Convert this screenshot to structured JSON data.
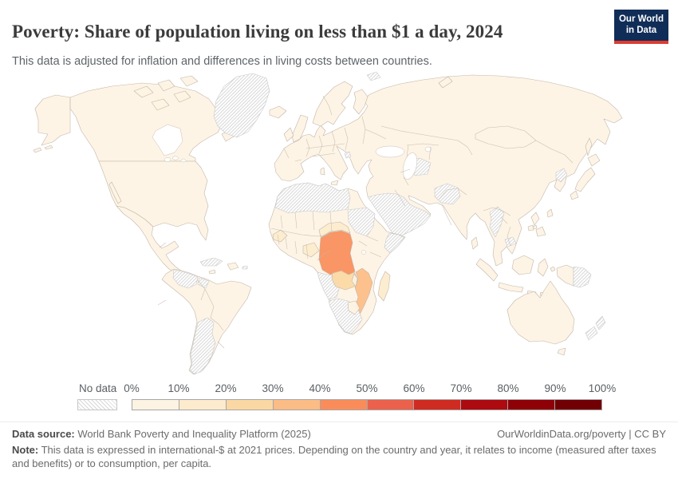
{
  "header": {
    "title": "Poverty: Share of population living on less than $1 a day, 2024",
    "subtitle": "This data is adjusted for inflation and differences in living costs between countries.",
    "logo": {
      "line1": "Our World",
      "line2": "in Data",
      "bg_color": "#102d58",
      "accent_color": "#dc3c30"
    }
  },
  "legend": {
    "no_data_label": "No data",
    "ticks": [
      "0%",
      "10%",
      "20%",
      "30%",
      "40%",
      "50%",
      "60%",
      "70%",
      "80%",
      "90%",
      "100%"
    ],
    "bin_colors": [
      "#fdf3e3",
      "#fcebcd",
      "#fbd8a3",
      "#fcbc85",
      "#fa8c5a",
      "#ec614b",
      "#cf2b21",
      "#ad0b10",
      "#8d0107",
      "#710004"
    ],
    "hatch_color": "#d6d6d6"
  },
  "map": {
    "water_color": "#ffffff",
    "border_color": "#c2b6aa",
    "nodata_border_color": "#c9c9c9",
    "regions": {
      "alaska": 0,
      "aleutians-1": 0,
      "aleutians-2": 0,
      "canada": 0,
      "arctic-island-1": 0,
      "arctic-island-2": 0,
      "arctic-island-3": 0,
      "arctic-island-4": 0,
      "arctic-island-5": 0,
      "newfoundland": 0,
      "greenland": "nodata",
      "iceland": 0,
      "usa": 0,
      "baja": 0,
      "mexico": 0,
      "cuba": "nodata",
      "jamaica": 0,
      "hispaniola": 0,
      "puerto-rico": "nodata",
      "south-america": 0,
      "venezuela": "nodata",
      "guyanas": "nodata",
      "argentina": "nodata",
      "eurasia": 0,
      "scandinavia": 0,
      "finland": 0,
      "uk": 0,
      "ireland": 0,
      "sicily": 0,
      "sardinia": 0,
      "balkans": "nodata",
      "svalbard": "nodata",
      "novaya-zemlya": 0,
      "africa": 0,
      "maghreb": "nodata",
      "sudan": "nodata",
      "somalia": "nodata",
      "angola": "nodata",
      "southern-africa": "nodata",
      "zimbabwe": 0,
      "drc": 4,
      "car": 1,
      "nigeria": 1,
      "guinea": 1,
      "zambia": 2,
      "mozambique": 3,
      "malawi": 0,
      "madagascar": 1,
      "arabia": "nodata",
      "turkmenistan": "nodata",
      "afghanistan": "nodata",
      "myanmar": "nodata",
      "cambodia": "nodata",
      "north-korea": "nodata",
      "sakhalin": 0,
      "japan-hokkaido": 0,
      "japan-honshu": 0,
      "japan-kyushu": 0,
      "taiwan": 0,
      "hainan": 0,
      "sri-lanka": 0,
      "luzon": 0,
      "visayas": 0,
      "mindanao": 0,
      "sumatra": 0,
      "java": 0,
      "borneo": 0,
      "sulawesi": 0,
      "sunda-1": 0,
      "sunda-2": 0,
      "maluku": 0,
      "new-guinea-west": 0,
      "papua-new-guinea": "nodata",
      "australia": 0,
      "tasmania": 0,
      "nz-north": "nodata",
      "nz-south": "nodata"
    }
  },
  "footer": {
    "source_label": "Data source:",
    "source_text": "World Bank Poverty and Inequality Platform (2025)",
    "link_text": "OurWorldinData.org/poverty | CC BY",
    "note_label": "Note:",
    "note_text": "This data is expressed in international-$ at 2021 prices. Depending on the country and year, it relates to income (measured after taxes and benefits) or to consumption, per capita."
  },
  "chart_data": {
    "type": "heatmap",
    "subtype": "choropleth-world-map",
    "title": "Poverty: Share of population living on less than $1 a day, 2024",
    "unit": "% of population",
    "legend_bins": [
      {
        "range": "0-10%",
        "color": "#fdf3e3"
      },
      {
        "range": "10-20%",
        "color": "#fcebcd"
      },
      {
        "range": "20-30%",
        "color": "#fbd8a3"
      },
      {
        "range": "30-40%",
        "color": "#fcbc85"
      },
      {
        "range": "40-50%",
        "color": "#fa8c5a"
      },
      {
        "range": "50-60%",
        "color": "#ec614b"
      },
      {
        "range": "60-70%",
        "color": "#cf2b21"
      },
      {
        "range": "70-80%",
        "color": "#ad0b10"
      },
      {
        "range": "80-90%",
        "color": "#8d0107"
      },
      {
        "range": "90-100%",
        "color": "#710004"
      }
    ],
    "no_data_style": "diagonal-hatch",
    "observations": [
      {
        "region": "Democratic Republic of Congo",
        "value_bin": "40-50%"
      },
      {
        "region": "Mozambique",
        "value_bin": "30-40%"
      },
      {
        "region": "Zambia",
        "value_bin": "20-30%"
      },
      {
        "region": "Madagascar",
        "value_bin": "10-20%"
      },
      {
        "region": "Central African Republic",
        "value_bin": "10-20%"
      },
      {
        "region": "Nigeria / West Africa belt",
        "value_bin": "10-20%"
      },
      {
        "region": "Most other countries (Americas, Europe, Asia, Oceania, N & E Africa)",
        "value_bin": "0-10%"
      },
      {
        "region": "No data",
        "countries": [
          "Greenland",
          "Cuba",
          "Venezuela",
          "Guyana/Suriname",
          "Argentina",
          "Morocco/Western Sahara",
          "Algeria",
          "Libya",
          "Sudan",
          "Somalia",
          "Angola",
          "Namibia",
          "Botswana",
          "South Africa",
          "Saudi Arabia",
          "Yemen",
          "Oman",
          "Turkmenistan",
          "Afghanistan",
          "Myanmar",
          "Cambodia",
          "North Korea",
          "Papua New Guinea",
          "New Zealand"
        ]
      }
    ]
  }
}
